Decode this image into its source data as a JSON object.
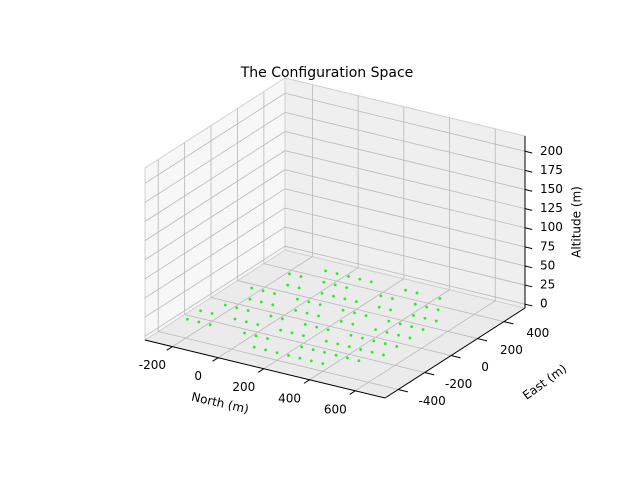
{
  "chart_data": {
    "type": "scatter3d",
    "title": "The Configuration Space",
    "xlabel": "North (m)",
    "ylabel": "East (m)",
    "zlabel": "Altitude (m)",
    "xlim": [
      -320,
      730
    ],
    "ylim": [
      -500,
      560
    ],
    "zlim": [
      -5,
      220
    ],
    "xticks": [
      -200,
      0,
      200,
      400,
      600
    ],
    "yticks": [
      -400,
      -200,
      0,
      200,
      400
    ],
    "zticks": [
      0,
      25,
      50,
      75,
      100,
      125,
      150,
      175,
      200
    ],
    "grid": true,
    "series": [
      {
        "color": "#22ee22",
        "x": [
          100,
          150,
          200,
          250,
          300,
          350,
          400,
          -250,
          -200,
          -150,
          0,
          50,
          100,
          250,
          300,
          350,
          400,
          450,
          500,
          -250,
          -200,
          -100,
          -50,
          0,
          100,
          150,
          200,
          300,
          350,
          400,
          450,
          500,
          550,
          -200,
          -150,
          -100,
          0,
          50,
          150,
          200,
          250,
          350,
          400,
          450,
          500,
          550,
          -150,
          -100,
          -50,
          50,
          100,
          150,
          250,
          300,
          400,
          450,
          500,
          550,
          -200,
          -150,
          -100,
          0,
          50,
          100,
          200,
          250,
          300,
          400,
          450,
          500,
          550,
          -100,
          -50,
          50,
          100,
          150,
          200,
          300,
          350,
          450,
          500,
          550,
          -150,
          -100,
          0,
          50,
          100,
          250,
          300,
          400,
          450,
          500,
          -50,
          0,
          50,
          100,
          150,
          300,
          350,
          450
        ],
        "y": [
          -400,
          -400,
          -400,
          -400,
          -400,
          -400,
          -400,
          -300,
          -300,
          -300,
          -300,
          -300,
          -300,
          -300,
          -300,
          -300,
          -300,
          -300,
          -300,
          -200,
          -200,
          -200,
          -200,
          -200,
          -200,
          -200,
          -200,
          -200,
          -200,
          -200,
          -200,
          -200,
          -200,
          -100,
          -100,
          -100,
          -100,
          -100,
          -100,
          -100,
          -100,
          -100,
          -100,
          -100,
          -100,
          -100,
          0,
          0,
          0,
          0,
          0,
          0,
          0,
          0,
          0,
          0,
          0,
          0,
          100,
          100,
          100,
          100,
          100,
          100,
          100,
          100,
          100,
          100,
          100,
          100,
          100,
          200,
          200,
          200,
          200,
          200,
          200,
          200,
          200,
          200,
          200,
          200,
          300,
          300,
          300,
          300,
          300,
          300,
          300,
          300,
          300,
          300,
          400,
          400,
          400,
          400,
          400,
          400,
          400,
          400
        ],
        "z": [
          5,
          5,
          5,
          5,
          5,
          5,
          5,
          5,
          5,
          5,
          5,
          5,
          5,
          5,
          5,
          5,
          5,
          5,
          5,
          5,
          5,
          5,
          5,
          5,
          5,
          5,
          5,
          5,
          5,
          5,
          5,
          5,
          5,
          5,
          5,
          5,
          5,
          5,
          5,
          5,
          5,
          5,
          5,
          5,
          5,
          5,
          5,
          5,
          5,
          5,
          5,
          5,
          5,
          5,
          5,
          5,
          5,
          5,
          5,
          5,
          5,
          5,
          5,
          5,
          5,
          5,
          5,
          5,
          5,
          5,
          5,
          5,
          5,
          5,
          5,
          5,
          5,
          5,
          5,
          5,
          5,
          5,
          5,
          5,
          5,
          5,
          5,
          5,
          5,
          5,
          5,
          5,
          5,
          5,
          5,
          5,
          5,
          5,
          5,
          5
        ]
      }
    ]
  }
}
